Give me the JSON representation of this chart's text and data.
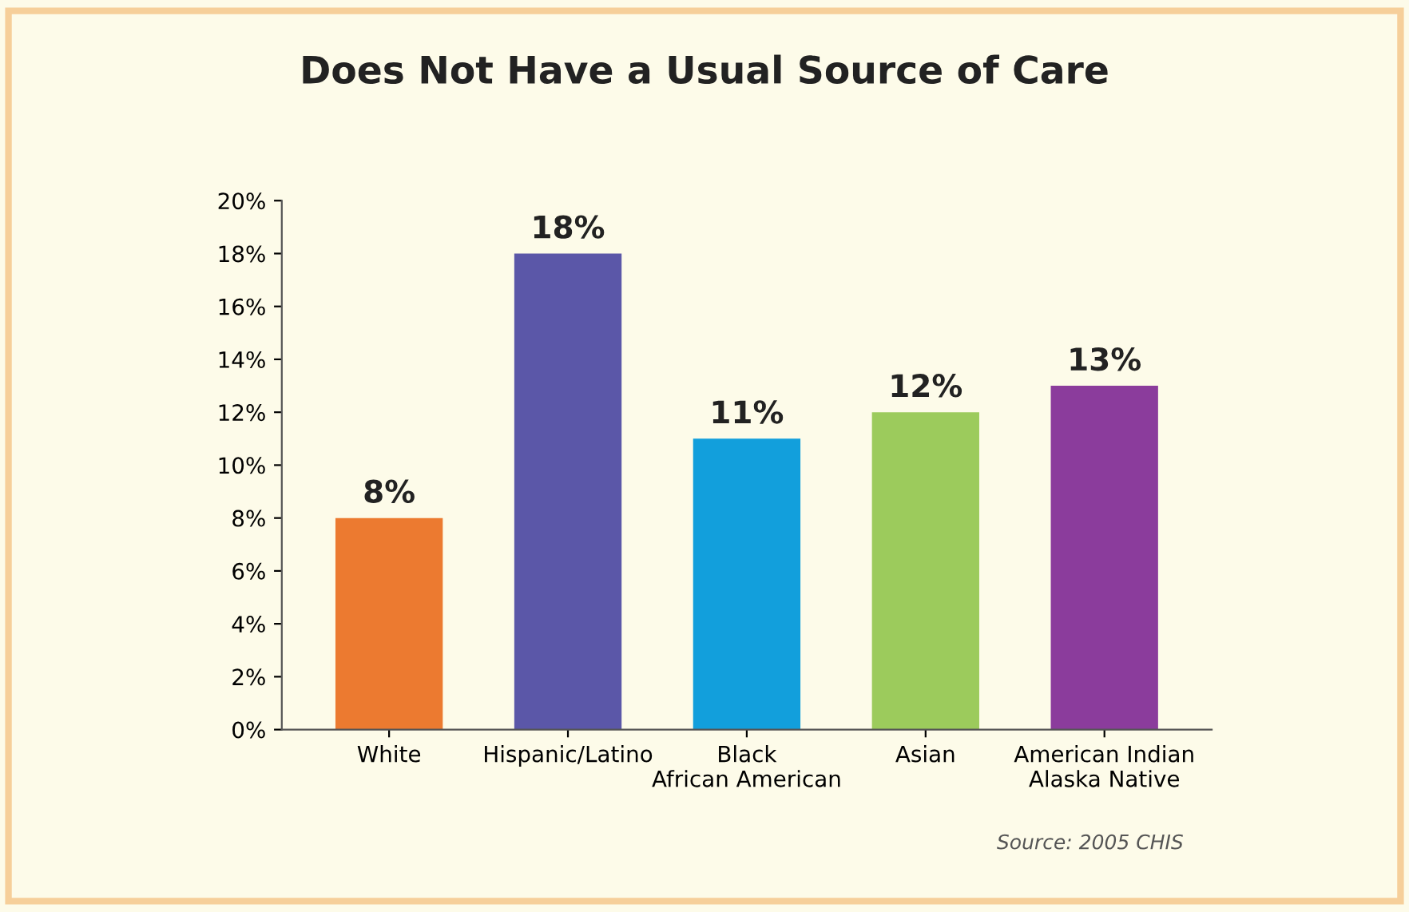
{
  "chart_data": {
    "type": "bar",
    "title": "Does Not Have a Usual Source of Care",
    "categories": [
      "White",
      "Hispanic/Latino",
      "Black\nAfrican American",
      "Asian",
      "American Indian\nAlaska Native"
    ],
    "values": [
      8,
      18,
      11,
      12,
      13
    ],
    "value_labels": [
      "8%",
      "18%",
      "11%",
      "12%",
      "13%"
    ],
    "colors": [
      "#ec7a30",
      "#5b57a8",
      "#129fdc",
      "#9ccb5c",
      "#8b3c9c"
    ],
    "ylim": [
      0,
      20
    ],
    "yticks": [
      {
        "value": 0,
        "label": "0%"
      },
      {
        "value": 2,
        "label": "2%"
      },
      {
        "value": 4,
        "label": "4%"
      },
      {
        "value": 6,
        "label": "6%"
      },
      {
        "value": 8,
        "label": "8%"
      },
      {
        "value": 10,
        "label": "10%"
      },
      {
        "value": 12,
        "label": "12%"
      },
      {
        "value": 14,
        "label": "14%"
      },
      {
        "value": 16,
        "label": "16%"
      },
      {
        "value": 18,
        "label": "18%"
      },
      {
        "value": 20,
        "label": "20%"
      }
    ],
    "grid": false,
    "legend": false,
    "annotations": [
      "Source: 2005 CHIS"
    ]
  }
}
